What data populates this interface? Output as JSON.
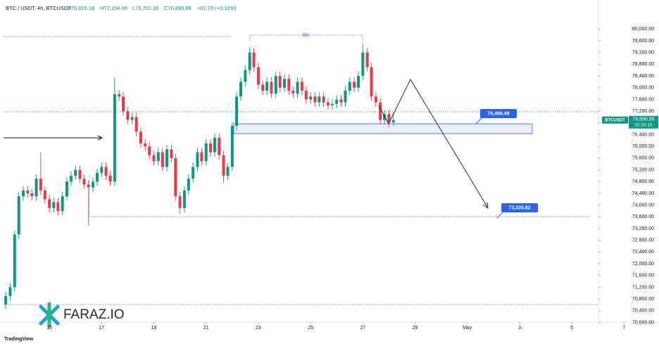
{
  "chart_data": {
    "type": "candlestick",
    "title": "BTC / USDT, 4h, BTCUSDT",
    "ohlc_header": {
      "open": "O76,815.18",
      "high": "H77,154.00",
      "low": "L76,701.35",
      "close": "C76,896.88",
      "change": "+81.70 (+0.11%)"
    },
    "x": [
      13.33,
      13.5,
      13.67,
      13.83,
      14,
      14.17,
      14.33,
      14.5,
      14.67,
      14.83,
      15,
      15.17,
      15.33,
      15.5,
      15.67,
      15.83,
      16,
      16.17,
      16.33,
      16.5,
      16.67,
      16.83,
      17,
      17.17,
      17.33,
      17.5,
      17.67,
      17.83,
      18,
      18.17,
      18.33,
      18.5,
      18.67,
      18.83,
      19,
      19.17,
      19.33,
      19.5,
      19.67,
      19.83,
      20,
      20.17,
      20.33,
      20.5,
      20.67,
      20.83,
      21,
      21.17,
      21.33,
      21.5,
      21.67,
      21.83,
      22,
      22.17,
      22.33,
      22.5,
      22.67,
      22.83,
      23,
      23.17,
      23.33,
      23.5,
      23.67,
      23.83,
      24,
      24.17,
      24.33,
      24.5,
      24.67,
      24.83,
      25,
      25.17,
      25.33,
      25.5,
      25.67,
      25.83,
      26,
      26.17,
      26.33,
      26.5,
      26.67,
      26.83,
      27,
      27.17,
      27.33,
      27.5,
      27.67,
      27.83,
      28,
      28.17
    ],
    "open": [
      70600,
      70900,
      71200,
      73000,
      74300,
      74500,
      74400,
      74300,
      74900,
      74500,
      74200,
      73900,
      74100,
      73800,
      74300,
      74800,
      75000,
      75200,
      74900,
      74700,
      74600,
      74800,
      75100,
      75300,
      75000,
      74800,
      77780,
      77700,
      77200,
      76900,
      77000,
      76500,
      76100,
      76000,
      75700,
      75500,
      75800,
      75300,
      75900,
      75600,
      74300,
      73900,
      74500,
      74900,
      75300,
      75800,
      75500,
      76100,
      75800,
      76300,
      75700,
      75000,
      75300,
      76700,
      77700,
      78200,
      78600,
      79200,
      78700,
      78100,
      77900,
      78200,
      77800,
      78400,
      78000,
      78300,
      77900,
      77800,
      78200,
      77900,
      77600,
      77700,
      77500,
      77700,
      77500,
      77400,
      77450,
      77600,
      77500,
      77900,
      78200,
      78000,
      78400,
      79200,
      78700,
      77700,
      77500,
      76900,
      77100,
      76815.18
    ],
    "high": [
      71050,
      71350,
      73150,
      74450,
      74650,
      74650,
      74550,
      75050,
      75800,
      74650,
      74350,
      74250,
      74250,
      74450,
      74950,
      75150,
      75350,
      75350,
      75050,
      74850,
      74950,
      75250,
      75450,
      75450,
      75150,
      78350,
      77930,
      77850,
      77350,
      77150,
      77150,
      76650,
      76250,
      76150,
      75850,
      75950,
      75950,
      76050,
      76050,
      75750,
      74450,
      74650,
      75050,
      75450,
      75950,
      75950,
      76250,
      76250,
      76450,
      76450,
      75850,
      75450,
      76850,
      77850,
      78350,
      78750,
      79380,
      79350,
      78850,
      78250,
      78350,
      78350,
      78550,
      78550,
      78450,
      78450,
      78050,
      78350,
      78350,
      78050,
      77850,
      77850,
      77850,
      77850,
      77650,
      77600,
      77750,
      77750,
      78050,
      78350,
      78350,
      78550,
      79500,
      79350,
      78850,
      77850,
      77650,
      77250,
      77250,
      77154
    ],
    "low": [
      70450,
      70750,
      71050,
      72850,
      74150,
      74250,
      74150,
      74150,
      74350,
      74050,
      73750,
      73750,
      73650,
      73650,
      74150,
      74650,
      74850,
      74750,
      74550,
      73300,
      74450,
      74650,
      74950,
      74850,
      74650,
      74650,
      77550,
      77050,
      76750,
      76750,
      76350,
      75950,
      75850,
      75550,
      75350,
      75350,
      75150,
      75150,
      75450,
      74150,
      73700,
      73750,
      74350,
      74750,
      75150,
      75350,
      75350,
      75650,
      75650,
      75550,
      74750,
      74850,
      75150,
      76550,
      77550,
      78050,
      78450,
      78550,
      77950,
      77750,
      77750,
      77650,
      77650,
      77850,
      77850,
      77750,
      77650,
      77650,
      77750,
      77450,
      77450,
      77350,
      77350,
      77350,
      77250,
      77250,
      77300,
      77350,
      77350,
      77750,
      77850,
      77850,
      78250,
      78550,
      77550,
      77350,
      76750,
      76750,
      76650,
      76701.35
    ],
    "close": [
      70900,
      71200,
      73000,
      74300,
      74500,
      74400,
      74300,
      74900,
      74500,
      74200,
      73900,
      74100,
      73800,
      74300,
      74800,
      75000,
      75200,
      74900,
      74700,
      74600,
      74800,
      75100,
      75300,
      75000,
      74800,
      77780,
      77700,
      77200,
      76900,
      77000,
      76500,
      76100,
      76000,
      75700,
      75500,
      75800,
      75300,
      75900,
      75600,
      74300,
      73900,
      74500,
      74900,
      75300,
      75800,
      75500,
      76100,
      75800,
      76300,
      75700,
      75000,
      75300,
      76700,
      77700,
      78200,
      78600,
      79200,
      78700,
      78100,
      77900,
      78200,
      77800,
      78400,
      78000,
      78300,
      77900,
      77800,
      78200,
      77900,
      77600,
      77700,
      77500,
      77700,
      77500,
      77400,
      77450,
      77600,
      77500,
      77900,
      78200,
      78000,
      78400,
      79200,
      78700,
      77700,
      77500,
      76900,
      77100,
      76815.18,
      76896.88
    ],
    "up_color": "#089981",
    "down_color": "#f23645",
    "xlim": [
      13.11,
      38.34
    ],
    "xticks": [
      15,
      17,
      19,
      21,
      23,
      25,
      27,
      29,
      {
        "value": 31,
        "label": "May"
      },
      {
        "value": 33,
        "label": "3"
      },
      {
        "value": 35,
        "label": "5"
      },
      {
        "value": 37,
        "label": "7"
      }
    ],
    "ylim": [
      69725,
      80990
    ],
    "yticks": [
      {
        "value": 70000,
        "label": "70,000.00"
      },
      {
        "value": 70400,
        "label": "70,400.00"
      },
      {
        "value": 70800,
        "label": "70,800.00"
      },
      {
        "value": 71200,
        "label": "71,200.00"
      },
      {
        "value": 71600,
        "label": "71,600.00"
      },
      {
        "value": 72000,
        "label": "72,000.00"
      },
      {
        "value": 72400,
        "label": "72,400.00"
      },
      {
        "value": 72800,
        "label": "72,800.00"
      },
      {
        "value": 73200,
        "label": "73,200.00"
      },
      {
        "value": 73600,
        "label": "73,600.00"
      },
      {
        "value": 74000,
        "label": "74,000.00"
      },
      {
        "value": 74400,
        "label": "74,400.00"
      },
      {
        "value": 74800,
        "label": "74,800.00"
      },
      {
        "value": 75200,
        "label": "75,200.00"
      },
      {
        "value": 75600,
        "label": "75,600.00"
      },
      {
        "value": 76000,
        "label": "76,000.00"
      },
      {
        "value": 76400,
        "label": "76,400.00"
      },
      {
        "value": 76800,
        "label": "76,800.00"
      },
      {
        "value": 77200,
        "label": "77,200.00"
      },
      {
        "value": 77600,
        "label": "77,600.00"
      },
      {
        "value": 78000,
        "label": "78,000.00"
      },
      {
        "value": 78400,
        "label": "78,400.00"
      },
      {
        "value": 78800,
        "label": "78,800.00"
      },
      {
        "value": 79200,
        "label": "79,200.00"
      },
      {
        "value": 79600,
        "label": "79,600.00"
      },
      {
        "value": 80000,
        "label": "80,000.00"
      }
    ],
    "grid": false,
    "price_tag": {
      "symbol": "BTCUSDT",
      "price": "76,896.88",
      "countdown": "02:10:15"
    },
    "annotations": {
      "swing_high": "SH",
      "zone_label": "76,496.49",
      "target_label": "73,325.82"
    },
    "watermark": "FARAZ.IO",
    "footer": "TradingView"
  }
}
